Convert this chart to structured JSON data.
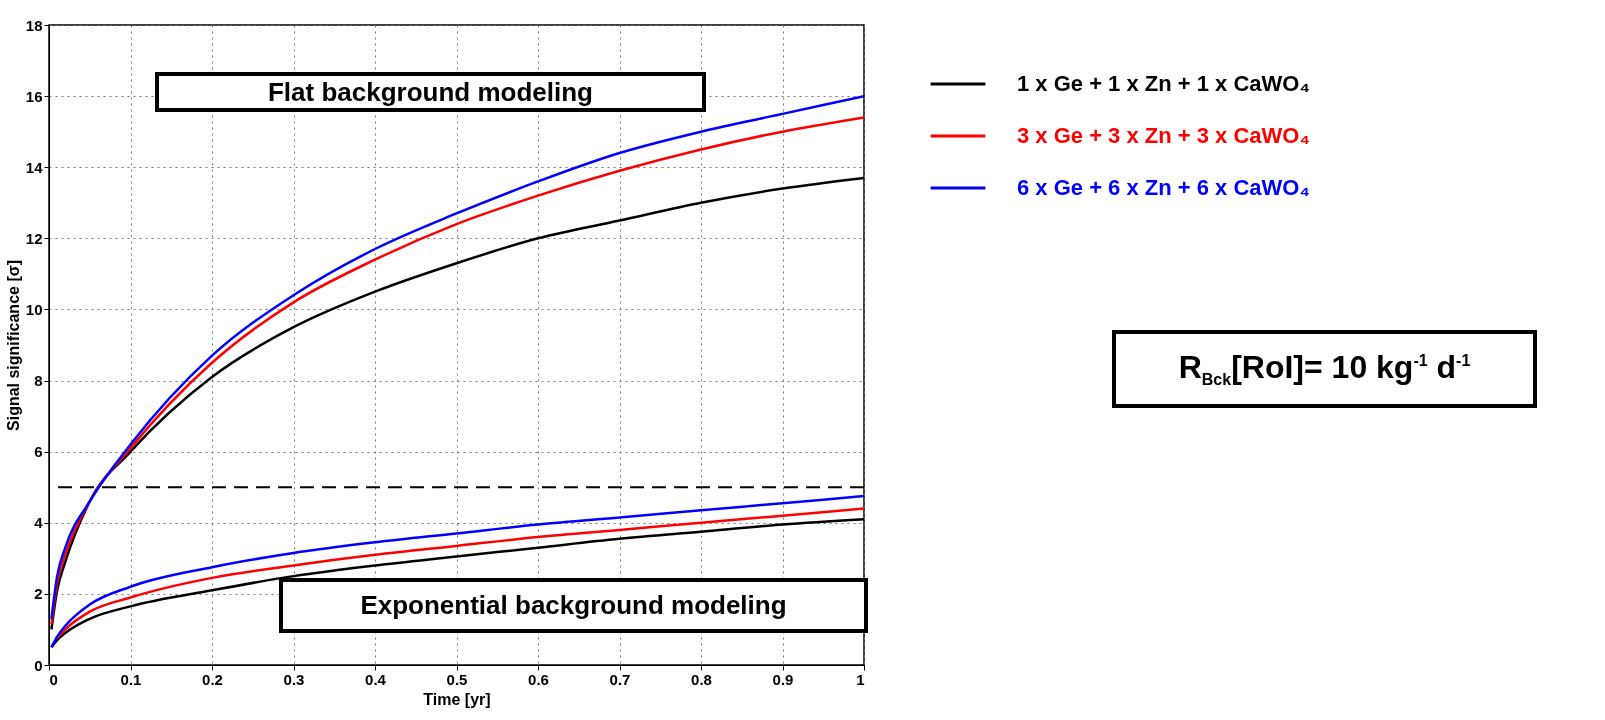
{
  "chart_data": {
    "type": "line",
    "xlabel": "Time [yr]",
    "ylabel": "Signal significance [σ]",
    "xlim": [
      0,
      1
    ],
    "xticks": [
      0,
      0.1,
      0.2,
      0.3,
      0.4,
      0.5,
      0.6,
      0.7,
      0.8,
      0.9,
      1
    ],
    "ylim": [
      0,
      18
    ],
    "yticks": [
      0,
      2,
      4,
      6,
      8,
      10,
      12,
      14,
      16,
      18
    ],
    "grid": true,
    "legend": "top right",
    "line_style": "solid",
    "marker": "none",
    "x": [
      0.003,
      0.01,
      0.02,
      0.05,
      0.1,
      0.2,
      0.3,
      0.4,
      0.5,
      0.6,
      0.7,
      0.8,
      0.9,
      1
    ],
    "series": [
      {
        "name": "1 x Ge + 1 x Zn + 1 x CaWO₄",
        "color": "#000000",
        "values": [
          1.0,
          2.1,
          2.9,
          4.6,
          6.0,
          8.1,
          9.5,
          10.5,
          11.3,
          12.0,
          12.5,
          13.0,
          13.4,
          13.7
        ]
      },
      {
        "name": "3 x Ge + 3 x Zn + 3 x CaWO₄",
        "color": "#ff0000",
        "values": [
          1.15,
          2.3,
          3.1,
          4.6,
          6.1,
          8.5,
          10.2,
          11.4,
          12.4,
          13.2,
          13.9,
          14.5,
          15.0,
          15.4
        ]
      },
      {
        "name": "6 x Ge + 6 x Zn + 6 x CaWO₄",
        "color": "#0000ff",
        "values": [
          1.3,
          2.5,
          3.3,
          4.6,
          6.2,
          8.7,
          10.4,
          11.7,
          12.7,
          13.6,
          14.4,
          15.0,
          15.5,
          16.0
        ]
      },
      {
        "color": "#000000",
        "values": [
          0.5,
          0.7,
          0.9,
          1.3,
          1.65,
          2.1,
          2.5,
          2.8,
          3.05,
          3.3,
          3.55,
          3.75,
          3.95,
          4.1
        ]
      },
      {
        "color": "#ff0000",
        "values": [
          null,
          0.75,
          1.0,
          1.5,
          1.9,
          2.45,
          2.8,
          3.1,
          3.35,
          3.6,
          3.8,
          4.0,
          4.2,
          4.4
        ]
      },
      {
        "color": "#0000ff",
        "values": [
          0.5,
          0.8,
          1.1,
          1.7,
          2.2,
          2.75,
          3.15,
          3.45,
          3.7,
          3.95,
          4.15,
          4.35,
          4.55,
          4.75
        ]
      }
    ],
    "ref_lines": [
      {
        "axis": "y",
        "value": 5,
        "color": "#000000",
        "line_style": "dashed"
      }
    ],
    "annotations": [
      "Flat background modeling",
      "Exponential background modeling",
      "R$_{Bck}$[RoI]= 10 kg$^{-1}$ d$^{-1}$"
    ]
  }
}
